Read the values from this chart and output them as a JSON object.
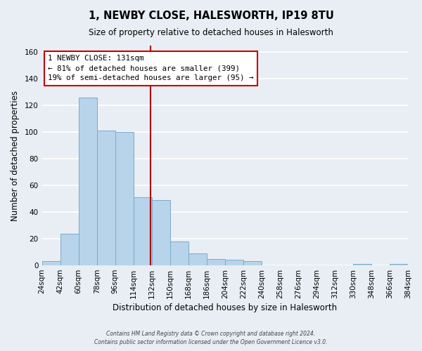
{
  "title": "1, NEWBY CLOSE, HALESWORTH, IP19 8TU",
  "subtitle": "Size of property relative to detached houses in Halesworth",
  "xlabel": "Distribution of detached houses by size in Halesworth",
  "ylabel": "Number of detached properties",
  "bin_edges": [
    24,
    42,
    60,
    78,
    96,
    114,
    132,
    150,
    168,
    186,
    204,
    222,
    240,
    258,
    276,
    294,
    312,
    330,
    348,
    366,
    384
  ],
  "counts": [
    3,
    24,
    126,
    101,
    100,
    51,
    49,
    18,
    9,
    5,
    4,
    3,
    0,
    0,
    0,
    0,
    0,
    1,
    0,
    1
  ],
  "vline_value": 131,
  "bar_color": "#b8d4ea",
  "bar_edge_color": "#7aaac8",
  "vline_color": "#aa0000",
  "annotation_line1": "1 NEWBY CLOSE: 131sqm",
  "annotation_line2": "← 81% of detached houses are smaller (399)",
  "annotation_line3": "19% of semi-detached houses are larger (95) →",
  "annotation_box_edge": "#cc0000",
  "annotation_box_fill": "#ffffff",
  "background_color": "#e8eef4",
  "plot_background": "#e8eef4",
  "grid_color": "#ffffff",
  "ylim": [
    0,
    165
  ],
  "yticks": [
    0,
    20,
    40,
    60,
    80,
    100,
    120,
    140,
    160
  ],
  "tick_labels": [
    "24sqm",
    "42sqm",
    "60sqm",
    "78sqm",
    "96sqm",
    "114sqm",
    "132sqm",
    "150sqm",
    "168sqm",
    "186sqm",
    "204sqm",
    "222sqm",
    "240sqm",
    "258sqm",
    "276sqm",
    "294sqm",
    "312sqm",
    "330sqm",
    "348sqm",
    "366sqm",
    "384sqm"
  ],
  "footer1": "Contains HM Land Registry data © Crown copyright and database right 2024.",
  "footer2": "Contains public sector information licensed under the Open Government Licence v3.0."
}
